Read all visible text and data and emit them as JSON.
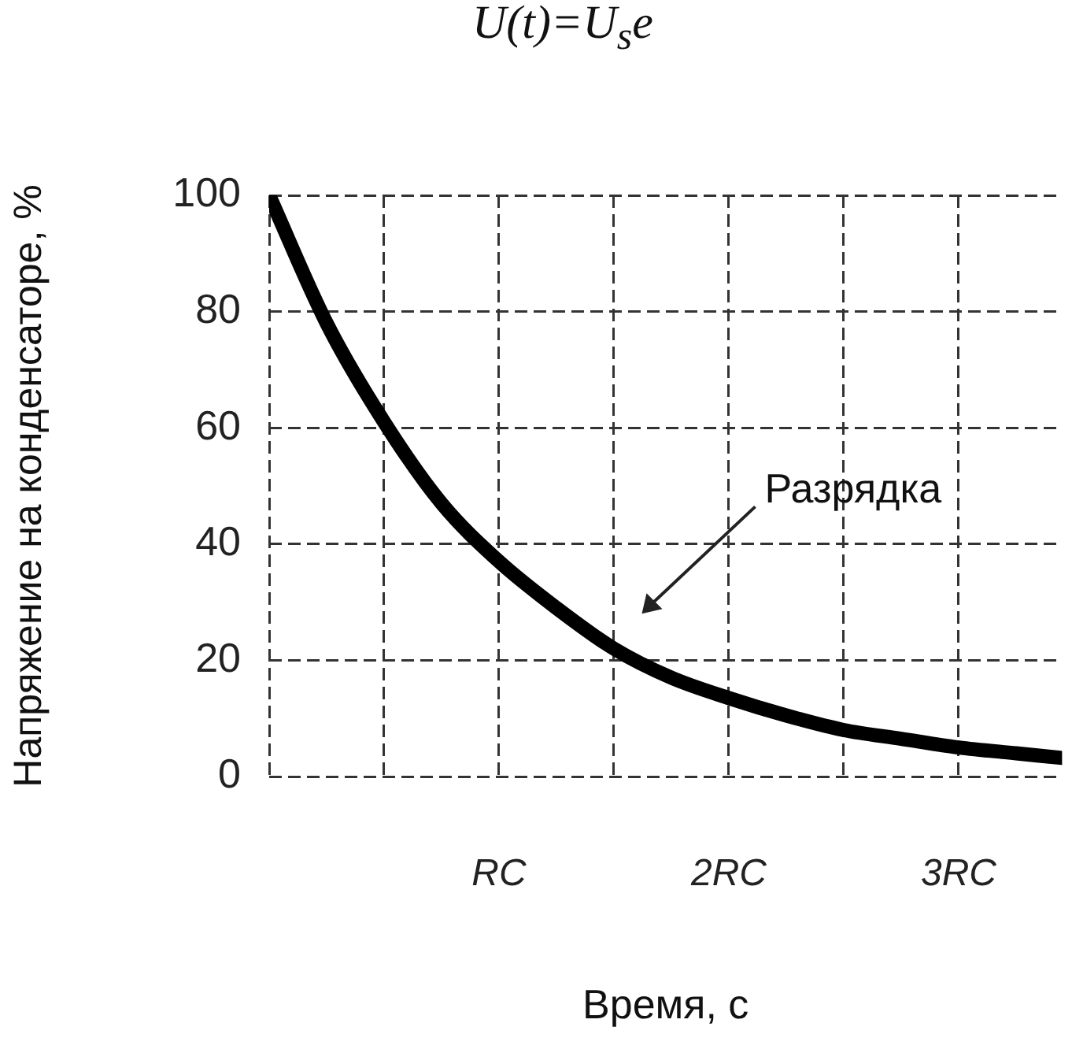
{
  "chart_data": {
    "type": "line",
    "title": "U(t)=U$_{s}$e",
    "xlabel": "Время, с",
    "ylabel": "Напряжение на конденсаторе, %",
    "x": [
      0,
      0.25,
      0.5,
      0.75,
      1,
      1.25,
      1.5,
      1.75,
      2,
      2.25,
      2.5,
      2.75,
      3,
      3.25,
      3.45
    ],
    "series": [
      {
        "color": "#000000",
        "values": [
          100,
          78,
          61,
          47,
          37,
          29,
          22,
          17,
          13.5,
          10.5,
          8,
          6.5,
          5,
          4,
          3.2
        ]
      }
    ],
    "xlim": [
      0,
      3.45
    ],
    "xticks": [
      {
        "value": 0,
        "label": null
      },
      {
        "value": 0.5,
        "label": null
      },
      {
        "value": 1,
        "label": "RC"
      },
      {
        "value": 1.5,
        "label": null
      },
      {
        "value": 2,
        "label": "2RC"
      },
      {
        "value": 2.5,
        "label": null
      },
      {
        "value": 3,
        "label": "3RC"
      }
    ],
    "ylim": [
      0,
      100
    ],
    "yticks": [
      0,
      20,
      40,
      60,
      80,
      100
    ],
    "grid": true,
    "legend": false,
    "marker": "none",
    "line_style": "solid",
    "annotations": [
      "Разрядка"
    ]
  }
}
